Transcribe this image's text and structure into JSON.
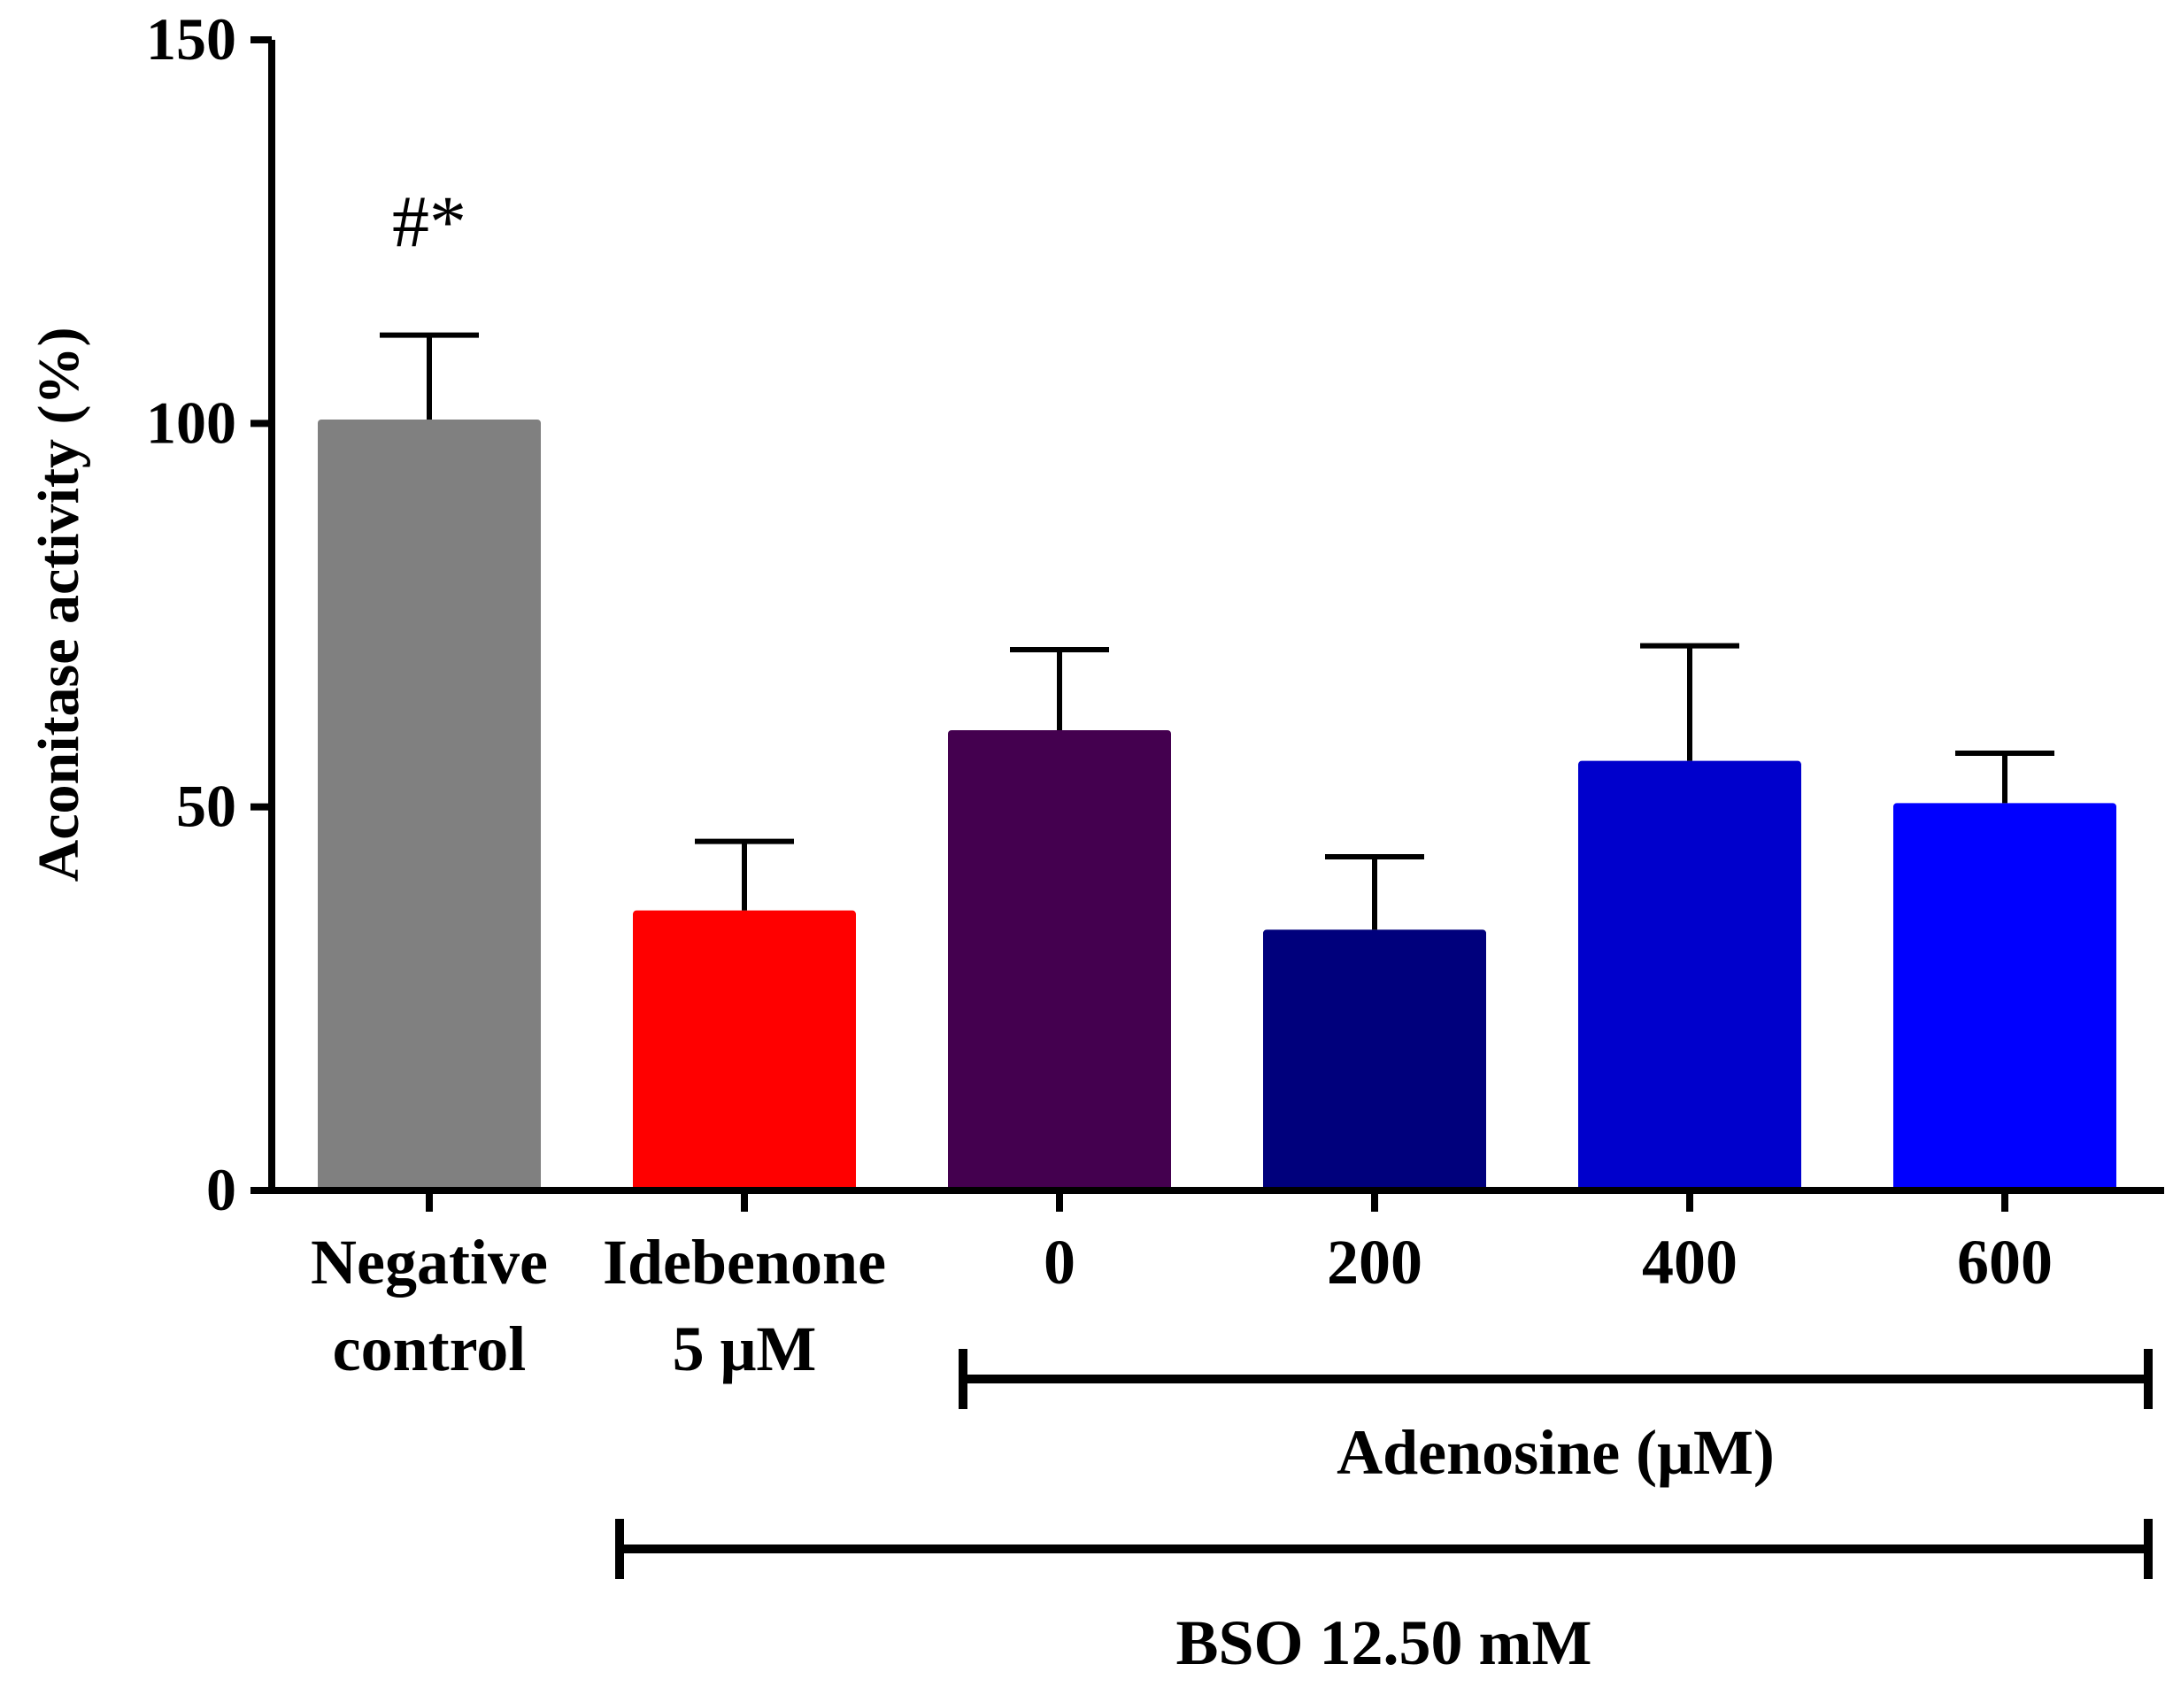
{
  "chart_data": {
    "type": "bar",
    "title": "",
    "xlabel": "",
    "ylabel": "Aconitase activity (%)",
    "ylim": [
      0,
      150
    ],
    "yticks": [
      0,
      50,
      100,
      150
    ],
    "categories": [
      [
        "Negative",
        "control"
      ],
      [
        "Idebenone",
        "5 μM"
      ],
      [
        "0"
      ],
      [
        "200"
      ],
      [
        "400"
      ],
      [
        "600"
      ]
    ],
    "values": [
      100.5,
      36.5,
      60,
      34,
      56,
      50.5
    ],
    "errors": [
      11,
      9,
      10.5,
      9.5,
      15,
      6.5
    ],
    "colors": [
      "#808080",
      "#ff0000",
      "#44004f",
      "#00007c",
      "#0000cc",
      "#0000ff"
    ],
    "annotations": [
      {
        "category_index": 0,
        "text": "#*"
      }
    ],
    "groups": [
      {
        "label": "Adenosine (μM)",
        "from_index": 2,
        "to_index": 5
      },
      {
        "label": "BSO 12.50 mM",
        "from_index": 1,
        "to_index": 5
      }
    ],
    "grid": false,
    "legend": "none"
  }
}
